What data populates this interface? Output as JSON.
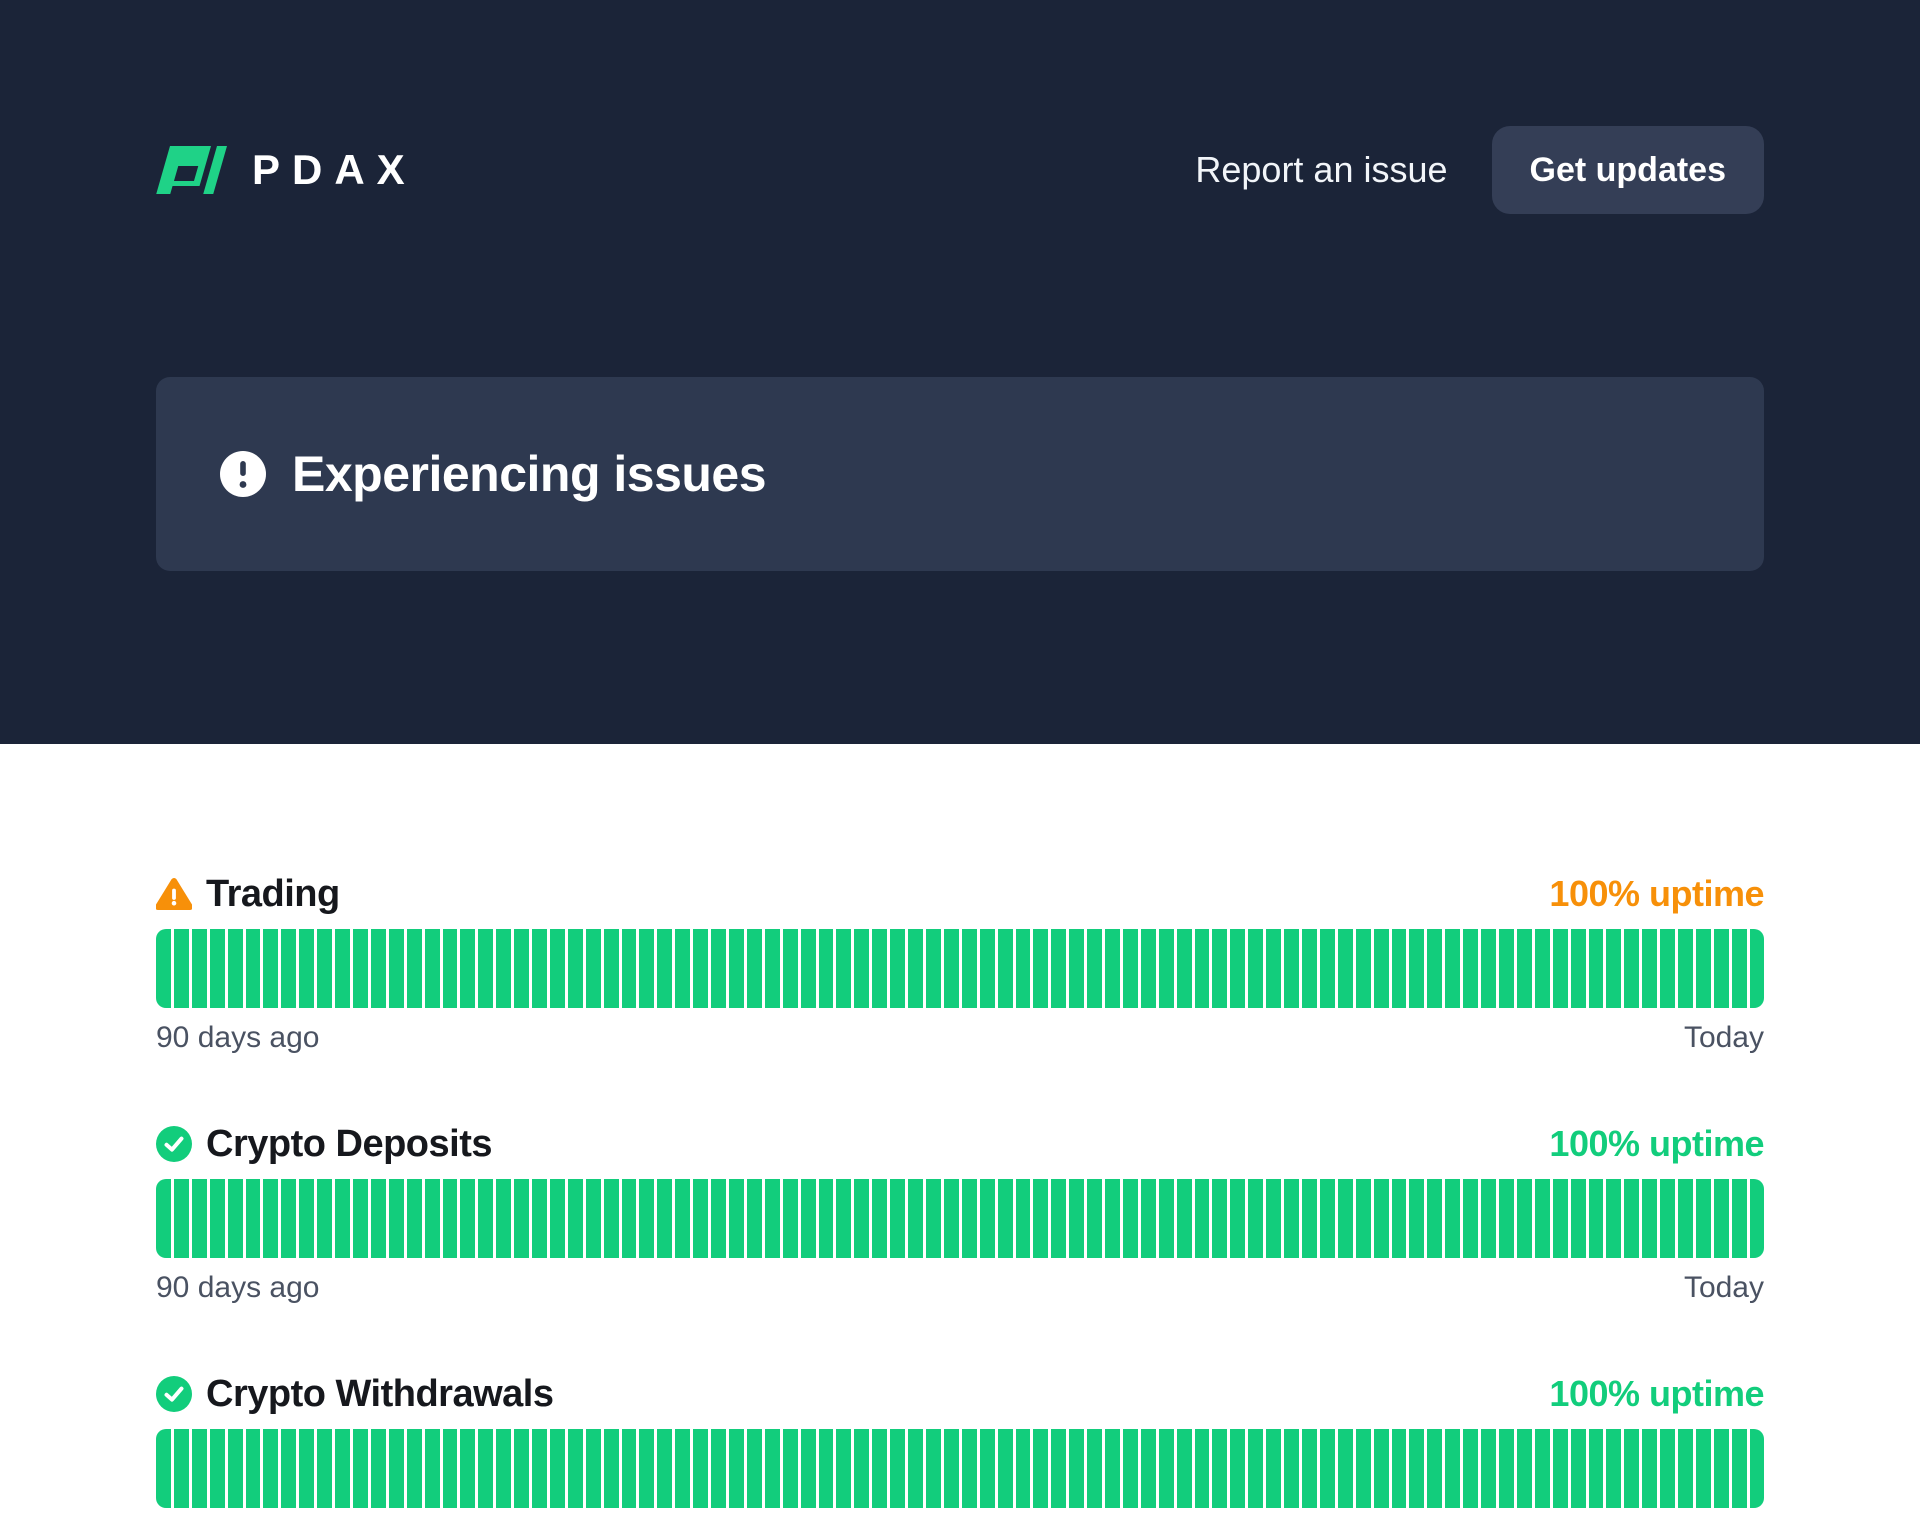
{
  "header": {
    "brand": "PDAX",
    "nav": {
      "report_link": "Report an issue",
      "updates_button": "Get updates"
    },
    "banner": {
      "title": "Experiencing issues",
      "icon": "exclamation-circle-icon"
    }
  },
  "services": [
    {
      "name": "Trading",
      "status": "warning",
      "status_icon": "warning-triangle-icon",
      "uptime": "100% uptime",
      "days": 90,
      "left_label": "90 days ago",
      "right_label": "Today"
    },
    {
      "name": "Crypto Deposits",
      "status": "ok",
      "status_icon": "check-circle-icon",
      "uptime": "100% uptime",
      "days": 90,
      "left_label": "90 days ago",
      "right_label": "Today"
    },
    {
      "name": "Crypto Withdrawals",
      "status": "ok",
      "status_icon": "check-circle-icon",
      "uptime": "100% uptime",
      "days": 90,
      "left_label": "",
      "right_label": ""
    }
  ],
  "colors": {
    "header_bg": "#1b2438",
    "banner_bg": "#2e3950",
    "button_bg": "#343e56",
    "green": "#12cd7c",
    "orange": "#f79009",
    "text_dark": "#16181d",
    "text_muted": "#4a5262"
  }
}
